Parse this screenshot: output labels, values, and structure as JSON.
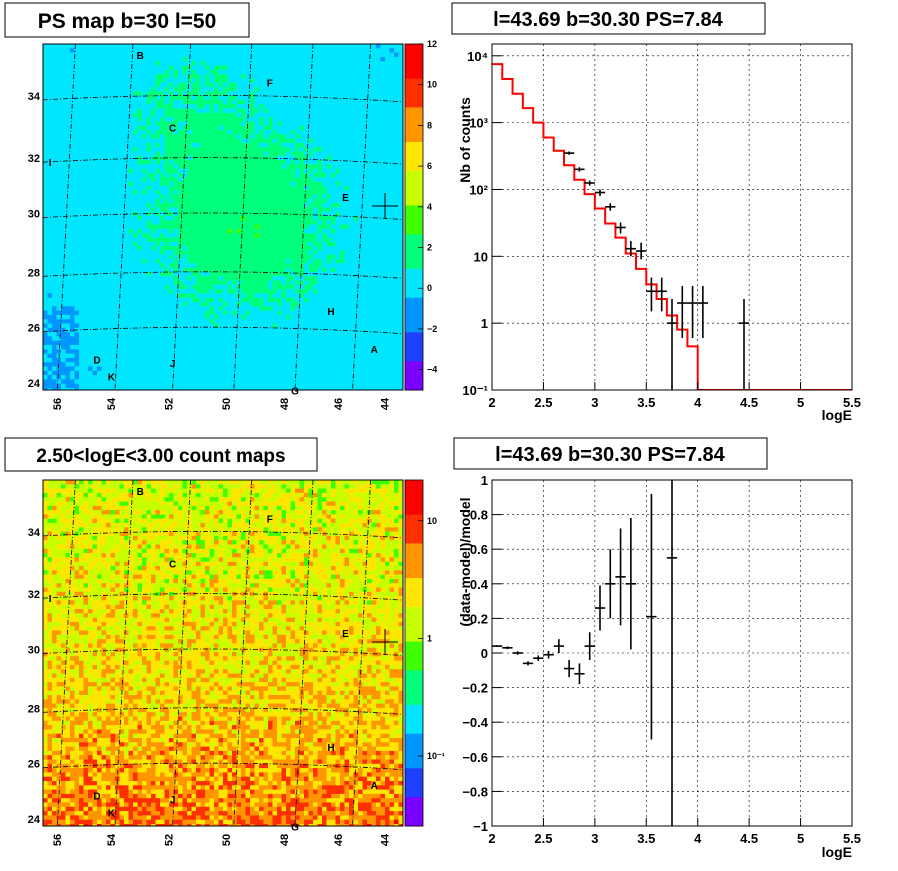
{
  "maps": [
    {
      "title": "PS map b=30 l=50",
      "x_ticks": [
        "56",
        "54",
        "52",
        "50",
        "48",
        "46",
        "44"
      ],
      "y_ticks": [
        "24",
        "26",
        "28",
        "30",
        "32",
        "34"
      ],
      "colorbar_ticks": [
        "12",
        "10",
        "8",
        "6",
        "4",
        "2",
        "0",
        "−2",
        "−4"
      ],
      "colorbar_range": [
        -5,
        12
      ],
      "colorbar_scale": "linear",
      "palette": [
        "#7a00ff",
        "#2040ff",
        "#0096ff",
        "#00e6ff",
        "#00ff7a",
        "#40ff00",
        "#c8ff00",
        "#ffe600",
        "#ff9600",
        "#ff3000",
        "#ff0000"
      ],
      "sources": [
        "B",
        "F",
        "C",
        "I",
        "E",
        "H",
        "D",
        "K",
        "J",
        "G",
        "A"
      ]
    },
    {
      "title": "2.50<logE<3.00 count maps",
      "x_ticks": [
        "56",
        "54",
        "52",
        "50",
        "48",
        "46",
        "44"
      ],
      "y_ticks": [
        "24",
        "26",
        "28",
        "30",
        "32",
        "34"
      ],
      "colorbar_ticks": [
        "10",
        "1",
        "10⁻¹"
      ],
      "colorbar_scale": "log",
      "palette": [
        "#7a00ff",
        "#2040ff",
        "#0096ff",
        "#00e6ff",
        "#00ff7a",
        "#40ff00",
        "#c8ff00",
        "#ffe600",
        "#ff9600",
        "#ff3000",
        "#ff0000"
      ],
      "sources": [
        "B",
        "F",
        "C",
        "I",
        "E",
        "H",
        "D",
        "K",
        "J",
        "G",
        "A"
      ]
    }
  ],
  "chart_data": [
    {
      "type": "line",
      "title": "l=43.69 b=30.30 PS=7.84",
      "xlabel": "logE",
      "ylabel": "Nb of counts",
      "xlim": [
        2,
        5.5
      ],
      "ylim": [
        0.1,
        15000
      ],
      "yscale": "log",
      "grid": true,
      "x_ticks": [
        "2",
        "2.5",
        "3",
        "3.5",
        "4",
        "4.5",
        "5",
        "5.5"
      ],
      "y_ticks": [
        "10⁻¹",
        "1",
        "10",
        "10²",
        "10³",
        "10⁴"
      ],
      "series": [
        {
          "kind": "model-histogram",
          "color": "#ff0000",
          "bin_edges": [
            2.0,
            2.1,
            2.2,
            2.3,
            2.4,
            2.5,
            2.6,
            2.7,
            2.8,
            2.9,
            3.0,
            3.1,
            3.2,
            3.3,
            3.4,
            3.5,
            3.6,
            3.7,
            3.8,
            3.9,
            4.0,
            4.1,
            4.2,
            4.3,
            4.4,
            4.5,
            4.6,
            4.7,
            4.8,
            4.9,
            5.0,
            5.1,
            5.2,
            5.3,
            5.4,
            5.5
          ],
          "values": [
            7500,
            4500,
            2700,
            1650,
            1000,
            600,
            380,
            230,
            140,
            85,
            52,
            31,
            19,
            11,
            6.5,
            3.8,
            2.3,
            1.3,
            0.8,
            0.45,
            0.1,
            0.1,
            0.1,
            0.1,
            0.1,
            0.1,
            0.1,
            0.1,
            0.1,
            0.1,
            0.1,
            0.1,
            0.1,
            0.1,
            0.1
          ]
        },
        {
          "kind": "data-points",
          "color": "#000000",
          "points": [
            {
              "x": 2.75,
              "y": 350,
              "ylo": 330,
              "yhi": 370
            },
            {
              "x": 2.85,
              "y": 200,
              "ylo": 185,
              "yhi": 215
            },
            {
              "x": 2.95,
              "y": 125,
              "ylo": 114,
              "yhi": 136
            },
            {
              "x": 3.05,
              "y": 90,
              "ylo": 80,
              "yhi": 100
            },
            {
              "x": 3.15,
              "y": 55,
              "ylo": 48,
              "yhi": 62
            },
            {
              "x": 3.25,
              "y": 27,
              "ylo": 22,
              "yhi": 32
            },
            {
              "x": 3.35,
              "y": 13,
              "ylo": 10,
              "yhi": 17
            },
            {
              "x": 3.45,
              "y": 12,
              "ylo": 9,
              "yhi": 16
            },
            {
              "x": 3.55,
              "y": 3,
              "ylo": 1.5,
              "yhi": 4.8
            },
            {
              "x": 3.65,
              "y": 3,
              "ylo": 1.5,
              "yhi": 4.8
            },
            {
              "x": 3.75,
              "y": 1,
              "ylo": 0.1,
              "yhi": 2.3
            },
            {
              "x": 3.85,
              "y": 2,
              "ylo": 0.6,
              "yhi": 3.6
            },
            {
              "x": 3.95,
              "y": 2,
              "ylo": 0.6,
              "yhi": 3.6
            },
            {
              "x": 4.05,
              "y": 2,
              "ylo": 0.6,
              "yhi": 3.6
            },
            {
              "x": 4.45,
              "y": 1,
              "ylo": 0.1,
              "yhi": 2.3
            }
          ]
        }
      ]
    },
    {
      "type": "scatter",
      "title": "l=43.69 b=30.30 PS=7.84",
      "xlabel": "logE",
      "ylabel": "(data-model)/model",
      "xlim": [
        2,
        5.5
      ],
      "ylim": [
        -1,
        1
      ],
      "grid": true,
      "x_ticks": [
        "2",
        "2.5",
        "3",
        "3.5",
        "4",
        "4.5",
        "5",
        "5.5"
      ],
      "y_ticks": [
        "1",
        "0.8",
        "0.6",
        "0.4",
        "0.2",
        "0",
        "−0.2",
        "−0.4",
        "−0.6",
        "−0.8",
        "−1"
      ],
      "series": [
        {
          "kind": "residuals",
          "color": "#000000",
          "points": [
            {
              "x": 2.05,
              "y": 0.04,
              "err": 0.005
            },
            {
              "x": 2.15,
              "y": 0.03,
              "err": 0.008
            },
            {
              "x": 2.25,
              "y": 0.0,
              "err": 0.01
            },
            {
              "x": 2.35,
              "y": -0.06,
              "err": 0.012
            },
            {
              "x": 2.45,
              "y": -0.03,
              "err": 0.016
            },
            {
              "x": 2.55,
              "y": -0.01,
              "err": 0.022
            },
            {
              "x": 2.65,
              "y": 0.04,
              "err": 0.04
            },
            {
              "x": 2.75,
              "y": -0.09,
              "err": 0.05
            },
            {
              "x": 2.85,
              "y": -0.12,
              "err": 0.06
            },
            {
              "x": 2.95,
              "y": 0.04,
              "err": 0.08
            },
            {
              "x": 3.05,
              "y": 0.26,
              "err": 0.13
            },
            {
              "x": 3.15,
              "y": 0.4,
              "err": 0.2
            },
            {
              "x": 3.25,
              "y": 0.44,
              "err": 0.28
            },
            {
              "x": 3.35,
              "y": 0.4,
              "err": 0.38
            },
            {
              "x": 3.55,
              "y": 0.21,
              "err": 0.71
            },
            {
              "x": 3.75,
              "y": 0.55,
              "err": 1.6
            }
          ]
        }
      ]
    }
  ]
}
